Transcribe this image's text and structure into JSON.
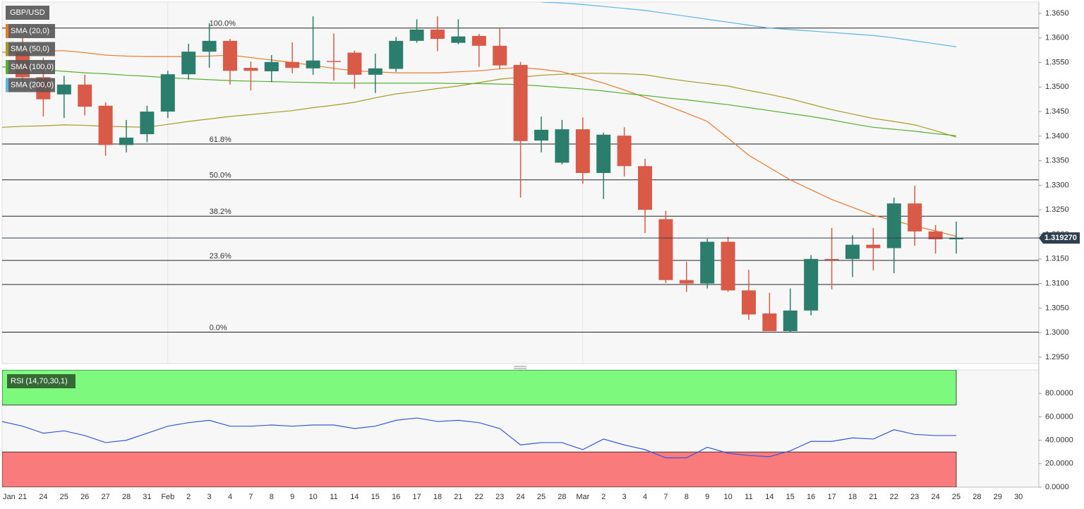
{
  "chart_data": [
    {
      "type": "candlestick",
      "title": "GBP/USD",
      "categories": [
        "Jan",
        "21",
        "24",
        "25",
        "26",
        "27",
        "28",
        "31",
        "Feb",
        "2",
        "3",
        "4",
        "7",
        "8",
        "9",
        "10",
        "11",
        "14",
        "15",
        "16",
        "17",
        "18",
        "21",
        "22",
        "23",
        "24",
        "25",
        "28",
        "Mar",
        "2",
        "3",
        "4",
        "7",
        "8",
        "9",
        "10",
        "11",
        "14",
        "15",
        "16",
        "17",
        "18",
        "21",
        "22",
        "23",
        "24",
        "25",
        "28",
        "29",
        "30"
      ],
      "open": [
        null,
        1.357,
        1.352,
        1.3485,
        1.3505,
        1.3462,
        1.3382,
        1.3404,
        1.345,
        1.3526,
        1.3572,
        1.3594,
        1.3539,
        1.3532,
        1.3551,
        1.3538,
        1.3553,
        1.357,
        1.3525,
        1.3537,
        1.3594,
        1.3617,
        1.359,
        1.3604,
        1.3584,
        1.3545,
        1.3391,
        1.3346,
        1.3414,
        1.3325,
        1.3401,
        1.3339,
        1.3231,
        1.3107,
        1.31,
        1.3185,
        1.3086,
        1.3039,
        1.3003,
        1.3045,
        1.315,
        1.315,
        1.3179,
        1.3172,
        1.3263,
        1.3206,
        1.319,
        null,
        null,
        null
      ],
      "high": [
        null,
        1.36,
        1.356,
        1.3523,
        1.3525,
        1.3469,
        1.3433,
        1.3462,
        1.3533,
        1.3588,
        1.363,
        1.3598,
        1.3552,
        1.3565,
        1.3591,
        1.3644,
        1.3609,
        1.3574,
        1.3568,
        1.3602,
        1.3638,
        1.3644,
        1.3638,
        1.3608,
        1.362,
        1.3551,
        1.344,
        1.3433,
        1.3438,
        1.3407,
        1.3418,
        1.3354,
        1.3248,
        1.3144,
        1.3191,
        1.3195,
        1.3128,
        1.3081,
        1.309,
        1.3158,
        1.3213,
        1.3198,
        1.3213,
        1.3275,
        1.3299,
        1.3219,
        1.3226,
        null,
        null,
        null
      ],
      "low": [
        null,
        1.3505,
        1.344,
        1.3437,
        1.3442,
        1.336,
        1.3367,
        1.3388,
        1.3437,
        1.3515,
        1.3539,
        1.3505,
        1.3493,
        1.351,
        1.3528,
        1.3525,
        1.3513,
        1.3497,
        1.3488,
        1.3531,
        1.359,
        1.3573,
        1.3587,
        1.3541,
        1.3536,
        1.3275,
        1.3367,
        1.3342,
        1.3303,
        1.3272,
        1.3318,
        1.3203,
        1.3101,
        1.3083,
        1.309,
        1.3083,
        1.3026,
        1.3003,
        1.3001,
        1.3035,
        1.3088,
        1.3113,
        1.3127,
        1.3121,
        1.3177,
        1.3161,
        1.3161,
        null,
        null,
        null
      ],
      "close": [
        null,
        1.352,
        1.3475,
        1.3505,
        1.346,
        1.3382,
        1.3397,
        1.345,
        1.3526,
        1.3572,
        1.3594,
        1.3533,
        1.3533,
        1.3551,
        1.3539,
        1.3554,
        1.3552,
        1.3525,
        1.3538,
        1.3594,
        1.3617,
        1.3598,
        1.3603,
        1.3584,
        1.3544,
        1.339,
        1.3413,
        1.3414,
        1.3325,
        1.3403,
        1.3339,
        1.325,
        1.3107,
        1.31,
        1.3185,
        1.3086,
        1.3037,
        1.3003,
        1.3045,
        1.315,
        1.3148,
        1.3179,
        1.3172,
        1.3263,
        1.3206,
        1.319,
        1.3193,
        null,
        null,
        null
      ],
      "up_color": "#2b7d6c",
      "down_color": "#d95a46",
      "series": [
        {
          "name": "SMA (20,0)",
          "color": "#e8782a",
          "values": [
            1.3571,
            1.3572,
            1.3573,
            1.3574,
            1.357,
            1.3565,
            1.3563,
            1.3562,
            1.3562,
            1.3562,
            1.3563,
            1.3565,
            1.356,
            1.3555,
            1.355,
            1.3544,
            1.3538,
            1.3533,
            1.3531,
            1.3529,
            1.3529,
            1.3529,
            1.3531,
            1.3533,
            1.3537,
            1.354,
            1.3536,
            1.3531,
            1.352,
            1.3508,
            1.3494,
            1.3479,
            1.3463,
            1.3447,
            1.343,
            1.3396,
            1.3361,
            1.3336,
            1.3311,
            1.3291,
            1.3271,
            1.3255,
            1.3239,
            1.3228,
            1.3217,
            1.3207,
            1.3196,
            null,
            null,
            null
          ]
        },
        {
          "name": "SMA (50,0)",
          "color": "#a89a25",
          "values": [
            1.3418,
            1.342,
            1.3421,
            1.3423,
            1.3422,
            1.342,
            1.3419,
            1.3418,
            1.3424,
            1.343,
            1.3435,
            1.344,
            1.3444,
            1.3448,
            1.3452,
            1.3458,
            1.3463,
            1.3469,
            1.3478,
            1.3486,
            1.3491,
            1.3497,
            1.3502,
            1.3509,
            1.3516,
            1.352,
            1.3524,
            1.3526,
            1.3528,
            1.3528,
            1.3527,
            1.3525,
            1.3518,
            1.3512,
            1.3507,
            1.3502,
            1.3493,
            1.3485,
            1.3476,
            1.3465,
            1.3454,
            1.3445,
            1.3436,
            1.343,
            1.3423,
            1.3411,
            1.3398,
            null,
            null,
            null
          ]
        },
        {
          "name": "SMA (100,0)",
          "color": "#55b030",
          "values": [
            1.3541,
            1.3538,
            1.3535,
            1.3532,
            1.3529,
            1.3527,
            1.3524,
            1.3522,
            1.3519,
            1.3517,
            1.3515,
            1.3513,
            1.3512,
            1.3511,
            1.351,
            1.3509,
            1.3508,
            1.3508,
            1.3508,
            1.3508,
            1.3508,
            1.3508,
            1.3507,
            1.3507,
            1.3506,
            1.3505,
            1.3502,
            1.3499,
            1.3496,
            1.3492,
            1.3487,
            1.3483,
            1.3478,
            1.3474,
            1.3469,
            1.3464,
            1.3458,
            1.3452,
            1.3446,
            1.344,
            1.3433,
            1.3425,
            1.3418,
            1.3414,
            1.341,
            1.3405,
            1.3401,
            null,
            null,
            null
          ]
        },
        {
          "name": "SMA (200,0)",
          "color": "#5ab4e6",
          "values": [
            null,
            null,
            null,
            null,
            null,
            null,
            null,
            null,
            null,
            null,
            null,
            null,
            null,
            null,
            null,
            null,
            null,
            null,
            null,
            null,
            null,
            null,
            null,
            null,
            null,
            null,
            1.3673,
            1.3671,
            1.3668,
            1.3664,
            1.366,
            1.3656,
            1.365,
            1.3644,
            1.3638,
            1.3632,
            1.3626,
            1.362,
            1.3617,
            1.3614,
            1.3611,
            1.3608,
            1.3605,
            1.36,
            1.3594,
            1.3588,
            1.3582,
            null,
            null,
            null
          ]
        }
      ],
      "fib_levels": [
        {
          "label": "100.0%",
          "value": 1.362
        },
        {
          "label": "61.8%",
          "value": 1.3384
        },
        {
          "label": "50.0%",
          "value": 1.3311
        },
        {
          "label": "38.2%",
          "value": 1.3237
        },
        {
          "label": "23.6%",
          "value": 1.3147
        },
        {
          "label": "0.0%",
          "value": 1.3001
        }
      ],
      "levels": [
        1.3098
      ],
      "last_price": {
        "value": 1.31927,
        "label": "1.319270"
      },
      "ylim": [
        1.2937,
        1.367
      ],
      "yticks": [
        {
          "value": 1.295,
          "label": "1.2950"
        },
        {
          "value": 1.3,
          "label": "1.3000"
        },
        {
          "value": 1.305,
          "label": "1.3050"
        },
        {
          "value": 1.31,
          "label": "1.3100"
        },
        {
          "value": 1.315,
          "label": "1.3150"
        },
        {
          "value": 1.32,
          "label": "1.3200"
        },
        {
          "value": 1.325,
          "label": "1.3250"
        },
        {
          "value": 1.33,
          "label": "1.3300"
        },
        {
          "value": 1.335,
          "label": "1.3350"
        },
        {
          "value": 1.34,
          "label": "1.3400"
        },
        {
          "value": 1.345,
          "label": "1.3450"
        },
        {
          "value": 1.35,
          "label": "1.3500"
        },
        {
          "value": 1.355,
          "label": "1.3550"
        },
        {
          "value": 1.36,
          "label": "1.3600"
        },
        {
          "value": 1.365,
          "label": "1.3650"
        }
      ]
    },
    {
      "type": "line",
      "title": "RSI (14,70,30,1)",
      "color": "#3a55e0",
      "values": [
        56,
        52,
        46,
        48,
        44,
        38,
        40,
        46,
        52,
        55,
        57,
        52,
        52,
        53,
        52,
        53,
        53,
        50,
        52,
        57,
        59,
        56,
        57,
        55,
        50,
        36,
        38,
        38,
        32,
        41,
        36,
        32,
        25,
        25,
        34,
        29,
        27,
        26,
        31,
        39,
        39,
        42,
        41,
        49,
        45,
        44,
        44,
        null,
        null,
        null
      ],
      "zones": [
        {
          "range": [
            70,
            100
          ],
          "color": "#7dfa7d"
        },
        {
          "range": [
            0,
            30
          ],
          "color": "#fa7b7b"
        }
      ],
      "ylim": [
        0,
        100
      ],
      "yticks": [
        {
          "value": 0,
          "label": "0.0000"
        },
        {
          "value": 20,
          "label": "20.0000"
        },
        {
          "value": 40,
          "label": "40.0000"
        },
        {
          "value": 60,
          "label": "60.0000"
        },
        {
          "value": 80,
          "label": "80.0000"
        }
      ]
    }
  ]
}
